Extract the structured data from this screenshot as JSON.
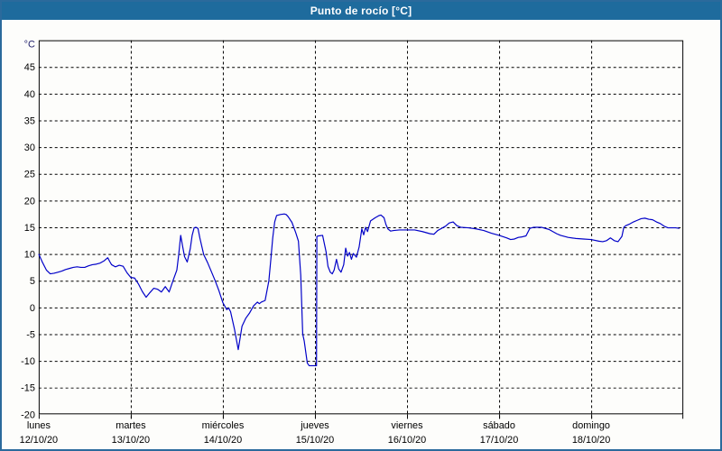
{
  "window": {
    "title": "Punto de rocío [°C]"
  },
  "colors": {
    "titlebar_bg": "#1e6b9d",
    "titlebar_text": "#ffffff",
    "frame_border": "#2b6a9c",
    "background": "#fdfdfb",
    "plot_background": "#ffffff",
    "grid": "#000000",
    "axis": "#000000",
    "tick_text": "#000000",
    "unit_text": "#24246e",
    "line": "#0000c8"
  },
  "chart_data": {
    "type": "line",
    "title": "Punto de rocío [°C]",
    "unit_label": "°C",
    "ylabel": "°C",
    "grid": true,
    "legend": "none",
    "y_axis": {
      "display_range": [
        -20,
        50
      ],
      "ticks": [
        45,
        40,
        35,
        30,
        25,
        20,
        15,
        10,
        5,
        0,
        -5,
        -10,
        -15,
        -20
      ]
    },
    "x_axis": {
      "range_hours": [
        0,
        168
      ],
      "day_ticks": [
        {
          "hours": 0,
          "day": "lunes",
          "date": "12/10/20"
        },
        {
          "hours": 24,
          "day": "martes",
          "date": "13/10/20"
        },
        {
          "hours": 48,
          "day": "miércoles",
          "date": "14/10/20"
        },
        {
          "hours": 72,
          "day": "jueves",
          "date": "15/10/20"
        },
        {
          "hours": 96,
          "day": "viernes",
          "date": "16/10/20"
        },
        {
          "hours": 120,
          "day": "sábado",
          "date": "17/10/20"
        },
        {
          "hours": 144,
          "day": "domingo",
          "date": "18/10/20"
        }
      ]
    },
    "series": [
      {
        "name": "Punto de rocío",
        "color": "#0000c8",
        "points": [
          [
            0,
            10
          ],
          [
            1,
            8.4
          ],
          [
            2,
            7
          ],
          [
            3,
            6.3
          ],
          [
            4,
            6.4
          ],
          [
            5,
            6.6
          ],
          [
            6,
            6.8
          ],
          [
            7,
            7.1
          ],
          [
            8,
            7.3
          ],
          [
            9,
            7.5
          ],
          [
            10,
            7.6
          ],
          [
            11,
            7.5
          ],
          [
            12,
            7.5
          ],
          [
            13,
            7.8
          ],
          [
            14,
            8
          ],
          [
            15,
            8.1
          ],
          [
            16,
            8.3
          ],
          [
            17,
            8.7
          ],
          [
            18,
            9.3
          ],
          [
            18.5,
            8.6
          ],
          [
            19,
            8
          ],
          [
            20,
            7.6
          ],
          [
            21,
            7.9
          ],
          [
            22,
            7.7
          ],
          [
            23,
            6.5
          ],
          [
            24,
            5.6
          ],
          [
            25,
            5.5
          ],
          [
            26,
            4.4
          ],
          [
            27,
            3
          ],
          [
            28,
            1.9
          ],
          [
            29,
            2.8
          ],
          [
            30,
            3.6
          ],
          [
            31,
            3.4
          ],
          [
            32,
            2.9
          ],
          [
            33,
            3.9
          ],
          [
            34,
            2.9
          ],
          [
            35,
            5
          ],
          [
            36,
            7
          ],
          [
            36.5,
            9.9
          ],
          [
            37,
            13.5
          ],
          [
            37.5,
            11.5
          ],
          [
            38,
            9.5
          ],
          [
            38.7,
            8.5
          ],
          [
            39.5,
            11
          ],
          [
            40,
            13.5
          ],
          [
            40.5,
            14.9
          ],
          [
            41,
            15
          ],
          [
            41.5,
            14.8
          ],
          [
            42,
            13
          ],
          [
            43,
            9.9
          ],
          [
            44,
            8.4
          ],
          [
            45,
            6.7
          ],
          [
            46,
            5
          ],
          [
            47,
            3.1
          ],
          [
            48,
            0.9
          ],
          [
            49,
            -0.4
          ],
          [
            49.5,
            -0.1
          ],
          [
            50,
            -0.8
          ],
          [
            51,
            -4
          ],
          [
            52,
            -7.9
          ],
          [
            53,
            -3.5
          ],
          [
            54,
            -2
          ],
          [
            55,
            -1
          ],
          [
            56,
            0.3
          ],
          [
            57,
            1
          ],
          [
            57.5,
            0.7
          ],
          [
            58,
            1
          ],
          [
            59,
            1.3
          ],
          [
            60,
            5
          ],
          [
            60.5,
            9
          ],
          [
            61,
            13
          ],
          [
            61.5,
            16
          ],
          [
            62,
            17.2
          ],
          [
            63,
            17.4
          ],
          [
            64,
            17.5
          ],
          [
            64.5,
            17.4
          ],
          [
            65,
            17
          ],
          [
            66,
            15.9
          ],
          [
            67,
            14
          ],
          [
            67.7,
            12.4
          ],
          [
            68.3,
            6
          ],
          [
            68.8,
            -5
          ],
          [
            69.2,
            -6.3
          ],
          [
            70,
            -10.4
          ],
          [
            70.5,
            -10.9
          ],
          [
            72,
            -10.9
          ],
          [
            72.4,
            -10.9
          ],
          [
            72.5,
            13.3
          ],
          [
            73,
            13.4
          ],
          [
            74,
            13.5
          ],
          [
            74.9,
            10.4
          ],
          [
            75.4,
            7.7
          ],
          [
            76,
            6.6
          ],
          [
            76.5,
            6.3
          ],
          [
            77,
            7
          ],
          [
            77.6,
            9
          ],
          [
            78.2,
            7.2
          ],
          [
            78.8,
            6.6
          ],
          [
            79.5,
            8
          ],
          [
            80,
            11.1
          ],
          [
            80.5,
            9.6
          ],
          [
            81,
            10.3
          ],
          [
            81.5,
            9
          ],
          [
            82,
            10.1
          ],
          [
            82.8,
            9.4
          ],
          [
            83.5,
            11.3
          ],
          [
            84.2,
            14.7
          ],
          [
            84.7,
            13.6
          ],
          [
            85.2,
            15
          ],
          [
            85.7,
            14.2
          ],
          [
            86.5,
            16.2
          ],
          [
            87.7,
            16.8
          ],
          [
            88.7,
            17.2
          ],
          [
            89.2,
            17.3
          ],
          [
            90,
            16.8
          ],
          [
            90.5,
            15.5
          ],
          [
            91,
            14.7
          ],
          [
            91.7,
            14.3
          ],
          [
            92.5,
            14.4
          ],
          [
            94,
            14.5
          ],
          [
            96,
            14.5
          ],
          [
            98,
            14.5
          ],
          [
            100,
            14.2
          ],
          [
            102,
            13.8
          ],
          [
            103,
            13.7
          ],
          [
            104,
            14.4
          ],
          [
            106,
            15.2
          ],
          [
            107,
            15.8
          ],
          [
            108,
            16
          ],
          [
            109,
            15.3
          ],
          [
            110,
            15
          ],
          [
            112,
            14.9
          ],
          [
            114,
            14.7
          ],
          [
            116,
            14.4
          ],
          [
            118,
            13.9
          ],
          [
            120,
            13.5
          ],
          [
            122,
            13
          ],
          [
            123,
            12.7
          ],
          [
            124,
            12.8
          ],
          [
            125,
            13.1
          ],
          [
            126,
            13.2
          ],
          [
            127,
            13.4
          ],
          [
            128,
            14.8
          ],
          [
            129,
            15
          ],
          [
            131,
            15
          ],
          [
            133,
            14.6
          ],
          [
            134,
            14.2
          ],
          [
            135,
            13.8
          ],
          [
            136,
            13.5
          ],
          [
            138,
            13.1
          ],
          [
            140,
            12.9
          ],
          [
            142,
            12.8
          ],
          [
            144,
            12.7
          ],
          [
            146,
            12.4
          ],
          [
            147,
            12.3
          ],
          [
            148,
            12.5
          ],
          [
            149,
            13
          ],
          [
            150,
            12.5
          ],
          [
            151,
            12.3
          ],
          [
            152,
            13.3
          ],
          [
            152.5,
            15
          ],
          [
            153,
            15.3
          ],
          [
            154,
            15.6
          ],
          [
            155,
            16
          ],
          [
            156,
            16.3
          ],
          [
            157,
            16.6
          ],
          [
            158,
            16.7
          ],
          [
            159,
            16.5
          ],
          [
            160,
            16.4
          ],
          [
            161,
            16
          ],
          [
            162,
            15.7
          ],
          [
            163,
            15.2
          ],
          [
            164,
            14.9
          ],
          [
            165,
            14.9
          ],
          [
            166,
            14.9
          ],
          [
            167,
            14.8
          ]
        ]
      }
    ]
  }
}
